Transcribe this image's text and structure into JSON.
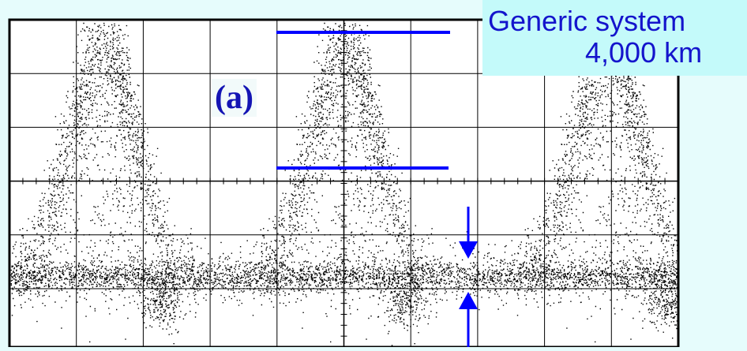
{
  "chart_data": {
    "type": "scatter",
    "description_of_series": "eye-diagram",
    "title_lines": [
      "Generic system",
      "4,000 km"
    ],
    "panel_label": "(a)",
    "grid": true,
    "x_divisions": 10,
    "y_divisions": 6,
    "colors": {
      "points": "#000000",
      "grid": "#000000",
      "markers": "#0000ff",
      "title_text": "#1414cc",
      "title_box": "#c4fafa",
      "background": "#e6fcfc"
    }
  }
}
